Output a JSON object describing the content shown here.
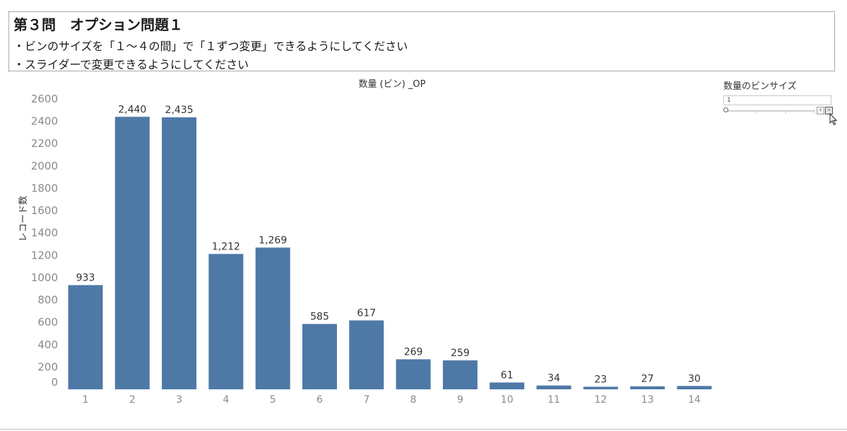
{
  "question": {
    "title": "第３問　オプション問題１",
    "line1": "・ビンのサイズを「１～４の間」で「１ずつ変更」できるようにしてください",
    "line2": "・スライダーで変更できるようにしてください"
  },
  "slider": {
    "title": "数量のビンサイズ",
    "value": "1",
    "prev_label": "‹",
    "next_label": "›"
  },
  "chart_data": {
    "type": "bar",
    "title": "数量 (ビン) _OP",
    "xlabel": "",
    "ylabel": "レコード数",
    "categories": [
      "1",
      "2",
      "3",
      "4",
      "5",
      "6",
      "7",
      "8",
      "9",
      "10",
      "11",
      "12",
      "13",
      "14"
    ],
    "values": [
      933,
      2440,
      2435,
      1212,
      1269,
      585,
      617,
      269,
      259,
      61,
      34,
      23,
      27,
      30
    ],
    "data_labels": [
      "933",
      "2,440",
      "2,435",
      "1,212",
      "1,269",
      "585",
      "617",
      "269",
      "259",
      "61",
      "34",
      "23",
      "27",
      "30"
    ],
    "yticks": [
      0,
      200,
      400,
      600,
      800,
      1000,
      1200,
      1400,
      1600,
      1800,
      2000,
      2200,
      2400,
      2600
    ],
    "ylim": [
      0,
      2600
    ],
    "bar_color": "#4e79a7",
    "grid": false,
    "legend": "none"
  }
}
